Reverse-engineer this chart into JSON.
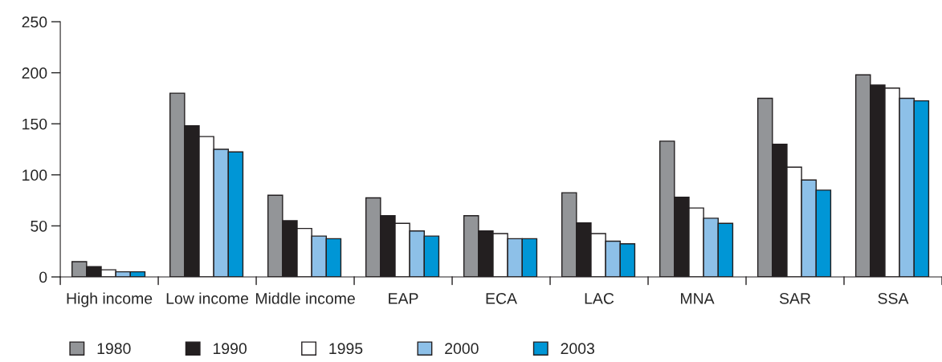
{
  "chart_data": {
    "type": "bar",
    "categories": [
      "High income",
      "Low income",
      "Middle income",
      "EAP",
      "ECA",
      "LAC",
      "MNA",
      "SAR",
      "SSA"
    ],
    "series": [
      {
        "name": "1980",
        "color": "#939598",
        "values": [
          15,
          180,
          80,
          77.5,
          60,
          82.5,
          133,
          175,
          198
        ]
      },
      {
        "name": "1990",
        "color": "#231f20",
        "values": [
          10,
          148,
          55,
          60,
          45,
          53,
          78,
          130,
          188
        ]
      },
      {
        "name": "1995",
        "color": "#ffffff",
        "values": [
          7,
          137.5,
          47.5,
          52.5,
          42.5,
          42.5,
          67.5,
          107.5,
          185
        ]
      },
      {
        "name": "2000",
        "color": "#8dc0e8",
        "values": [
          5,
          125,
          40,
          45,
          37.5,
          35,
          57.5,
          95,
          175
        ]
      },
      {
        "name": "2003",
        "color": "#0096d6",
        "values": [
          5,
          122.5,
          37.5,
          40,
          37.5,
          32.5,
          52.5,
          85,
          172.5
        ]
      }
    ],
    "ylim": [
      0,
      250
    ],
    "yticks": [
      0,
      50,
      100,
      150,
      200,
      250
    ],
    "grid": false,
    "legend": "bottom left"
  }
}
